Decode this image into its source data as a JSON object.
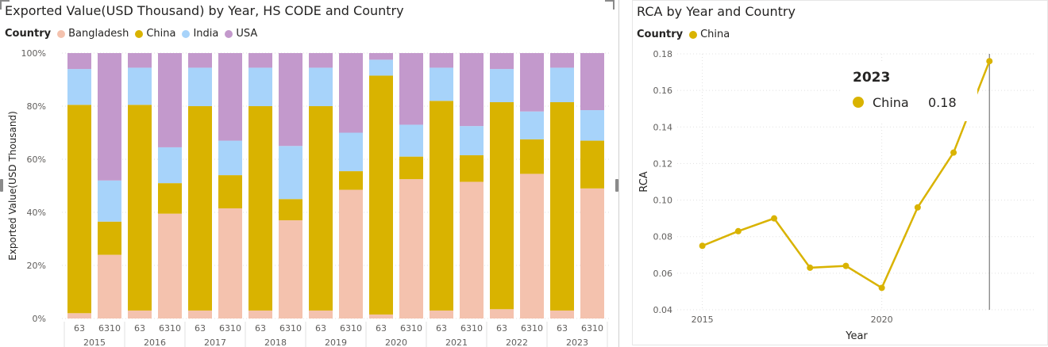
{
  "left_chart": {
    "title": "Exported Value(USD Thousand) by Year, HS CODE and Country",
    "legend_title": "Country",
    "ylabel": "Exported Value(USD Thousand)"
  },
  "right_chart": {
    "title": "RCA by Year and Country",
    "legend_title": "Country",
    "xlabel": "Year",
    "ylabel": "RCA",
    "tooltip": {
      "year": "2023",
      "series": "China",
      "value": "0.18"
    }
  },
  "colors": {
    "Bangladesh": "#f4c2ae",
    "China": "#d9b300",
    "India": "#a7d3fa",
    "USA": "#c399cc",
    "line": "#d9b300"
  },
  "chart_data": [
    {
      "type": "bar",
      "stacked": "100%",
      "title": "Exported Value(USD Thousand) by Year, HS CODE and Country",
      "ylabel": "Exported Value(USD Thousand)",
      "ylim": [
        0,
        100
      ],
      "yticks": [
        "0%",
        "20%",
        "40%",
        "60%",
        "80%",
        "100%"
      ],
      "legend_position": "top-left",
      "groups": [
        "2015",
        "2016",
        "2017",
        "2018",
        "2019",
        "2020",
        "2021",
        "2022",
        "2023"
      ],
      "sub_categories": [
        "63",
        "6310"
      ],
      "series": [
        {
          "name": "Bangladesh",
          "values": [
            2,
            24,
            3,
            39.5,
            3,
            41.5,
            3,
            37,
            3,
            48.5,
            1.5,
            52.5,
            3,
            51.5,
            3.5,
            54.5,
            3,
            49
          ]
        },
        {
          "name": "China",
          "values": [
            78.5,
            12.5,
            77.5,
            11.5,
            77,
            12.5,
            77,
            8,
            77,
            7,
            90,
            8.5,
            79,
            10,
            78,
            13,
            78.5,
            18
          ]
        },
        {
          "name": "India",
          "values": [
            13.5,
            15.5,
            14,
            13.5,
            14.5,
            13,
            14.5,
            20,
            14.5,
            14.5,
            6,
            12,
            12.5,
            11,
            12.5,
            10.5,
            13,
            11.5
          ]
        },
        {
          "name": "USA",
          "values": [
            6,
            48,
            5.5,
            35.5,
            5.5,
            33,
            5.5,
            35,
            5.5,
            30,
            2.5,
            27,
            5.5,
            27.5,
            6,
            22,
            5.5,
            21.5
          ]
        }
      ]
    },
    {
      "type": "line",
      "title": "RCA by Year and Country",
      "xlabel": "Year",
      "ylabel": "RCA",
      "xticks": [
        "2015",
        "2020"
      ],
      "yticks": [
        "0.04",
        "0.06",
        "0.08",
        "0.10",
        "0.12",
        "0.14",
        "0.16",
        "0.18"
      ],
      "ylim": [
        0.04,
        0.18
      ],
      "xlim": [
        2014.3,
        2024.3
      ],
      "grid": true,
      "legend_position": "top-left",
      "x": [
        2015,
        2016,
        2017,
        2018,
        2019,
        2020,
        2021,
        2022,
        2023
      ],
      "series": [
        {
          "name": "China",
          "values": [
            0.075,
            0.083,
            0.09,
            0.063,
            0.064,
            0.052,
            0.096,
            0.126,
            0.176
          ]
        }
      ]
    }
  ]
}
